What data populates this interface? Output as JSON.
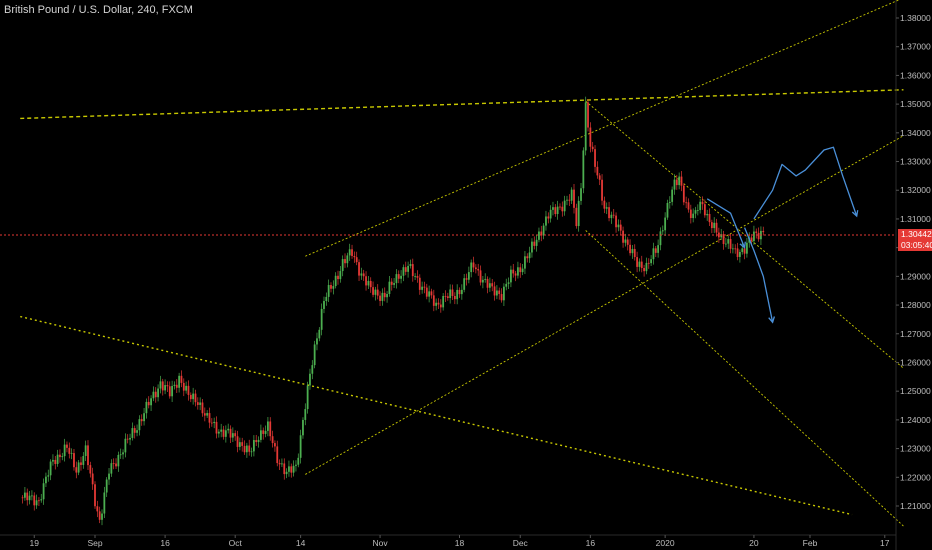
{
  "header": {
    "title": "British Pound / U.S. Dollar, 240, FXCM"
  },
  "last_price": {
    "value": "1.30442",
    "countdown": "03:05:40",
    "color": "#e53935",
    "level": 1.30442
  },
  "colors": {
    "up": "#4caf50",
    "down": "#e53935",
    "trend": "#c8c800",
    "forecast": "#4a90d9",
    "background": "#000000"
  },
  "chart_data": {
    "type": "candlestick",
    "title": "British Pound / U.S. Dollar, 240, FXCM",
    "ylim": [
      1.202,
      1.387
    ],
    "y_ticks": [
      "1.38000",
      "1.37000",
      "1.36000",
      "1.35000",
      "1.34000",
      "1.33000",
      "1.32000",
      "1.31000",
      "1.30000",
      "1.29000",
      "1.28000",
      "1.27000",
      "1.26000",
      "1.25000",
      "1.24000",
      "1.23000",
      "1.22000",
      "1.21000"
    ],
    "y_tick_values": [
      1.38,
      1.37,
      1.36,
      1.35,
      1.34,
      1.33,
      1.32,
      1.31,
      1.3,
      1.29,
      1.28,
      1.27,
      1.26,
      1.25,
      1.24,
      1.23,
      1.22,
      1.21
    ],
    "x_ticks": [
      "19",
      "Sep",
      "16",
      "Oct",
      "14",
      "Nov",
      "18",
      "Dec",
      "16",
      "2020",
      "20",
      "Feb",
      "17"
    ],
    "x_tick_days": [
      -13,
      0,
      15,
      30,
      44,
      61,
      78,
      91,
      106,
      122,
      141,
      153,
      169
    ],
    "xlim_days": [
      -16,
      173
    ],
    "price_path": [
      [
        -16,
        1.213
      ],
      [
        -12,
        1.212
      ],
      [
        -9,
        1.226
      ],
      [
        -6,
        1.23
      ],
      [
        -4,
        1.223
      ],
      [
        -2,
        1.229
      ],
      [
        0,
        1.212
      ],
      [
        1,
        1.205
      ],
      [
        3,
        1.222
      ],
      [
        6,
        1.23
      ],
      [
        9,
        1.238
      ],
      [
        12,
        1.247
      ],
      [
        14,
        1.253
      ],
      [
        16,
        1.249
      ],
      [
        18,
        1.255
      ],
      [
        20,
        1.248
      ],
      [
        22,
        1.247
      ],
      [
        24,
        1.24
      ],
      [
        27,
        1.236
      ],
      [
        30,
        1.234
      ],
      [
        33,
        1.228
      ],
      [
        35,
        1.235
      ],
      [
        37,
        1.237
      ],
      [
        39,
        1.227
      ],
      [
        41,
        1.221
      ],
      [
        43,
        1.224
      ],
      [
        45,
        1.245
      ],
      [
        47,
        1.265
      ],
      [
        49,
        1.282
      ],
      [
        51,
        1.287
      ],
      [
        53,
        1.295
      ],
      [
        55,
        1.298
      ],
      [
        57,
        1.291
      ],
      [
        59,
        1.285
      ],
      [
        62,
        1.283
      ],
      [
        65,
        1.291
      ],
      [
        67,
        1.293
      ],
      [
        69,
        1.289
      ],
      [
        71,
        1.284
      ],
      [
        73,
        1.28
      ],
      [
        75,
        1.283
      ],
      [
        77,
        1.283
      ],
      [
        79,
        1.288
      ],
      [
        81,
        1.294
      ],
      [
        83,
        1.289
      ],
      [
        85,
        1.285
      ],
      [
        87,
        1.284
      ],
      [
        89,
        1.29
      ],
      [
        91,
        1.293
      ],
      [
        93,
        1.298
      ],
      [
        95,
        1.305
      ],
      [
        97,
        1.311
      ],
      [
        99,
        1.314
      ],
      [
        101,
        1.316
      ],
      [
        102,
        1.318
      ],
      [
        103,
        1.309
      ],
      [
        104,
        1.322
      ],
      [
        105,
        1.349
      ],
      [
        106,
        1.335
      ],
      [
        107,
        1.329
      ],
      [
        108,
        1.323
      ],
      [
        109,
        1.314
      ],
      [
        110,
        1.311
      ],
      [
        112,
        1.308
      ],
      [
        114,
        1.3
      ],
      [
        116,
        1.295
      ],
      [
        118,
        1.293
      ],
      [
        120,
        1.299
      ],
      [
        122,
        1.311
      ],
      [
        124,
        1.322
      ],
      [
        125,
        1.325
      ],
      [
        126,
        1.318
      ],
      [
        127,
        1.312
      ],
      [
        128,
        1.31
      ],
      [
        129,
        1.315
      ],
      [
        130,
        1.316
      ],
      [
        131,
        1.31
      ],
      [
        132,
        1.307
      ],
      [
        133,
        1.306
      ],
      [
        135,
        1.302
      ],
      [
        137,
        1.298
      ],
      [
        139,
        1.3
      ],
      [
        141,
        1.304
      ],
      [
        143,
        1.306
      ]
    ],
    "drawings": {
      "channel_upper": {
        "from": [
          45,
          1.297
        ],
        "to": [
          173,
          1.387
        ]
      },
      "channel_lower": {
        "from": [
          45,
          1.221
        ],
        "to": [
          173,
          1.339
        ]
      },
      "down_channel_upper": {
        "from": [
          105,
          1.351
        ],
        "to": [
          173,
          1.258
        ]
      },
      "down_channel_lower": {
        "from": [
          105,
          1.306
        ],
        "to": [
          173,
          1.203
        ]
      },
      "horizontal_ray": {
        "from": [
          -16,
          1.345
        ],
        "to": [
          173,
          1.355
        ]
      },
      "long_trendline": {
        "from": [
          -16,
          1.276
        ],
        "to": [
          162,
          1.207
        ]
      },
      "forecast_1": [
        [
          131,
          1.317
        ],
        [
          136,
          1.312
        ],
        [
          139,
          1.3
        ]
      ],
      "forecast_2": [
        [
          139,
          1.307
        ],
        [
          141,
          1.299
        ],
        [
          143,
          1.29
        ],
        [
          145,
          1.274
        ]
      ],
      "forecast_3": [
        [
          141,
          1.31
        ],
        [
          145,
          1.32
        ],
        [
          147,
          1.329
        ],
        [
          150,
          1.325
        ],
        [
          152,
          1.327
        ],
        [
          156,
          1.334
        ],
        [
          158,
          1.335
        ],
        [
          160,
          1.325
        ],
        [
          163,
          1.311
        ]
      ]
    }
  }
}
